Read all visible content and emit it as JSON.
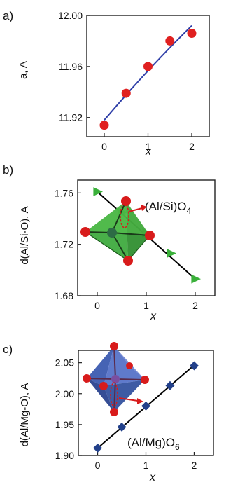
{
  "chart_data": [
    {
      "panel": "a)",
      "type": "scatter",
      "ylabel": "a, A",
      "xlabel": "x",
      "xlim": [
        -0.4,
        2.4
      ],
      "ylim": [
        11.905,
        12.0
      ],
      "xticks": [
        "0",
        "1",
        "2"
      ],
      "yticks": [
        "11.92",
        "11.96",
        "12.00"
      ],
      "marker": "circle",
      "marker_color": "#e02020",
      "line_color": "#2f3fa8",
      "series": [
        {
          "x": [
            0,
            0.5,
            1,
            1.5,
            2
          ],
          "y": [
            11.914,
            11.939,
            11.96,
            11.98,
            11.986
          ]
        }
      ],
      "fit": {
        "x": [
          0,
          2
        ],
        "y": [
          11.918,
          11.992
        ]
      },
      "fit_style": "curved"
    },
    {
      "panel": "b)",
      "type": "scatter",
      "ylabel": "d(Al/Si-O), A",
      "xlabel": "x",
      "xlim": [
        -0.4,
        2.4
      ],
      "ylim": [
        1.68,
        1.77
      ],
      "xticks": [
        "0",
        "1",
        "2"
      ],
      "yticks": [
        "1.68",
        "1.72",
        "1.76"
      ],
      "marker": "triangle-right",
      "marker_color": "#3ab03a",
      "line_color": "#000000",
      "series": [
        {
          "x": [
            0,
            0.5,
            1,
            1.5,
            2
          ],
          "y": [
            1.761,
            1.745,
            1.729,
            1.713,
            1.693
          ]
        }
      ],
      "fit": {
        "x": [
          0,
          2
        ],
        "y": [
          1.761,
          1.693
        ]
      },
      "annotation": {
        "text": "(Al/Si)O",
        "subscript": "4"
      }
    },
    {
      "panel": "c)",
      "type": "scatter",
      "ylabel": "d(Al/Mg-O), A",
      "xlabel": "x",
      "xlim": [
        -0.4,
        2.4
      ],
      "ylim": [
        1.9,
        2.07
      ],
      "xticks": [
        "0",
        "1",
        "2"
      ],
      "yticks": [
        "1.90",
        "1.95",
        "2.00",
        "2.05"
      ],
      "marker": "diamond",
      "marker_color": "#22408a",
      "line_color": "#000000",
      "series": [
        {
          "x": [
            0,
            0.5,
            1,
            1.5,
            2
          ],
          "y": [
            1.912,
            1.946,
            1.98,
            2.013,
            2.045
          ]
        }
      ],
      "fit": {
        "x": [
          0,
          2
        ],
        "y": [
          1.912,
          2.046
        ]
      },
      "annotation": {
        "text": "(Al/Mg)O",
        "subscript": "6"
      }
    }
  ]
}
